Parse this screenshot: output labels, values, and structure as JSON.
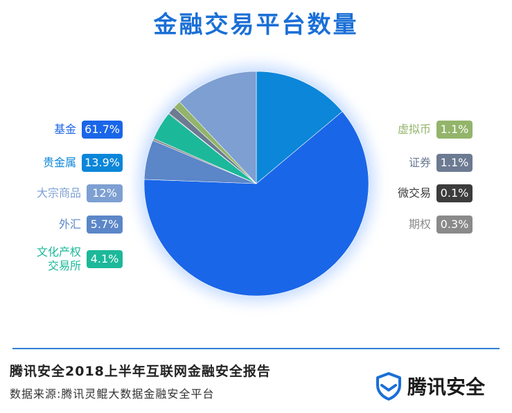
{
  "title": "金融交易平台数量",
  "footer": {
    "report_title": "腾讯安全2018上半年互联网金融安全报告",
    "source": "数据来源:腾讯灵鲲大数据金融安全平台",
    "logo_text": "腾讯安全"
  },
  "chart_data": {
    "type": "pie",
    "title": "金融交易平台数量",
    "start_angle_deg": 0,
    "direction": "clockwise",
    "slices": [
      {
        "label": "贵金属",
        "value": 13.9,
        "display": "13.9%",
        "color": "#0b86d9"
      },
      {
        "label": "基金",
        "value": 61.7,
        "display": "61.7%",
        "color": "#1a66e8"
      },
      {
        "label": "外汇",
        "value": 5.7,
        "display": "5.7%",
        "color": "#5b86c8"
      },
      {
        "label": "期权",
        "value": 0.3,
        "display": "0.3%",
        "color": "#8a8a8a"
      },
      {
        "label": "文化产权交易所",
        "value": 4.1,
        "display": "4.1%",
        "color": "#1cb89a"
      },
      {
        "label": "微交易",
        "value": 0.1,
        "display": "0.1%",
        "color": "#3c3c3c"
      },
      {
        "label": "证券",
        "value": 1.1,
        "display": "1.1%",
        "color": "#6c7a92"
      },
      {
        "label": "虚拟币",
        "value": 1.1,
        "display": "1.1%",
        "color": "#93b46a"
      },
      {
        "label": "大宗商品",
        "value": 12,
        "display": "12%",
        "color": "#7d9fd2"
      }
    ]
  }
}
